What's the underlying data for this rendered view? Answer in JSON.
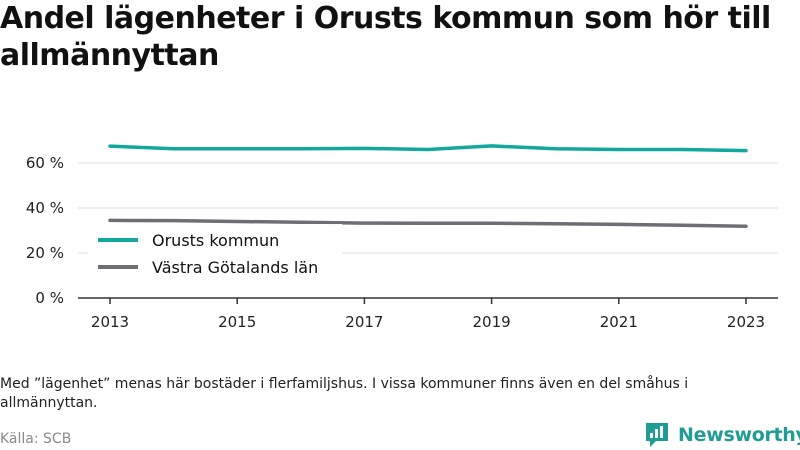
{
  "title": "Andel lägenheter i Orusts kommun som hör till allmännyttan",
  "note": "Med ”lägenhet” menas här bostäder i flerfamiljshus. I vissa kommuner finns även en del småhus i allmännyttan.",
  "source": "Källa: SCB",
  "brand": {
    "name": "Newsworthy",
    "icon": "newsworthy-logo-icon",
    "color": "#1f9c93"
  },
  "chart_data": {
    "type": "line",
    "title": "Andel lägenheter i Orusts kommun som hör till allmännyttan",
    "x": [
      2013,
      2014,
      2015,
      2016,
      2017,
      2018,
      2019,
      2020,
      2021,
      2022,
      2023
    ],
    "x_ticks": [
      "2013",
      "2015",
      "2017",
      "2019",
      "2021",
      "2023"
    ],
    "y_ticks": [
      "0 %",
      "20 %",
      "40 %",
      "60 %"
    ],
    "ylim": [
      0,
      70
    ],
    "grid": true,
    "legend_position": "left",
    "series": [
      {
        "name": "Orusts kommun",
        "color": "#13a89e",
        "values": [
          67.5,
          66.3,
          66.3,
          66.3,
          66.5,
          66.0,
          67.6,
          66.3,
          66.0,
          66.0,
          65.5
        ]
      },
      {
        "name": "Västra Götalands län",
        "color": "#6e6e75",
        "values": [
          34.5,
          34.4,
          34.0,
          33.7,
          33.3,
          33.2,
          33.2,
          33.0,
          32.7,
          32.3,
          31.9
        ]
      }
    ]
  }
}
